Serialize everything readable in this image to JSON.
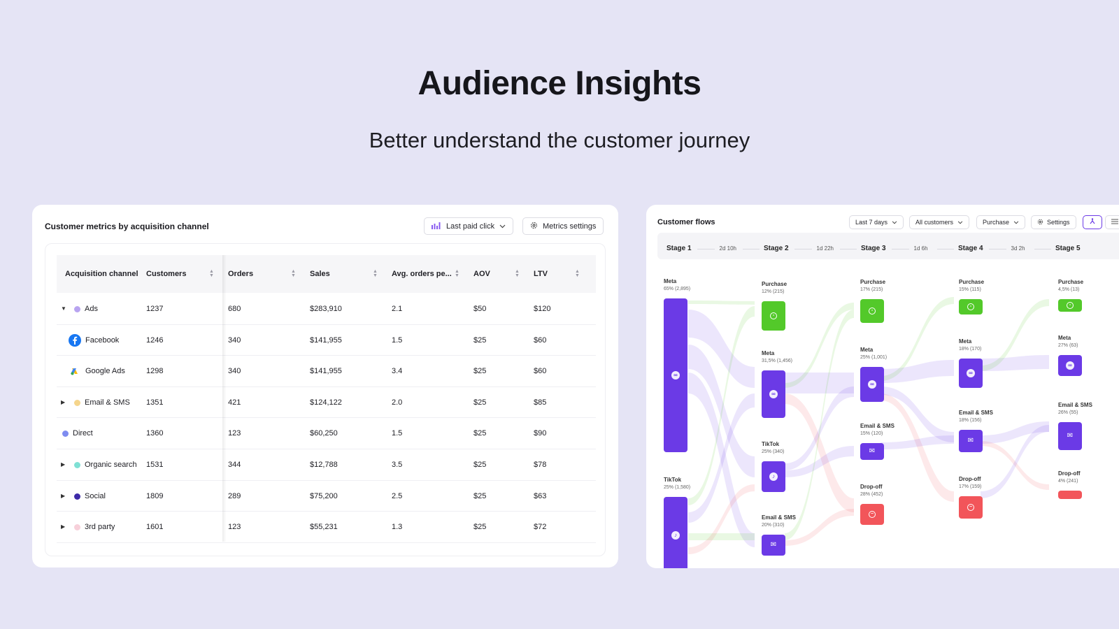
{
  "hero": {
    "title": "Audience Insights",
    "subtitle": "Better understand the customer journey"
  },
  "metrics_card": {
    "title": "Customer metrics by acquisition channel",
    "attribution_button": "Last paid click",
    "settings_button": "Metrics settings",
    "columns": [
      "Acquisition channel",
      "Customers",
      "Orders",
      "Sales",
      "Avg. orders pe...",
      "AOV",
      "LTV"
    ],
    "rows": [
      {
        "channel": "Ads",
        "customers": "1237",
        "orders": "680",
        "sales": "$283,910",
        "avg_orders": "2.1",
        "aov": "$50",
        "ltv": "$120",
        "color": "#b8a4f0",
        "caret": "down"
      },
      {
        "channel": "Facebook",
        "customers": "1246",
        "orders": "340",
        "sales": "$141,955",
        "avg_orders": "1.5",
        "aov": "$25",
        "ltv": "$60",
        "icon": "facebook-icon"
      },
      {
        "channel": "Google Ads",
        "customers": "1298",
        "orders": "340",
        "sales": "$141,955",
        "avg_orders": "3.4",
        "aov": "$25",
        "ltv": "$60",
        "icon": "google-ads-icon"
      },
      {
        "channel": "Email & SMS",
        "customers": "1351",
        "orders": "421",
        "sales": "$124,122",
        "avg_orders": "2.0",
        "aov": "$25",
        "ltv": "$85",
        "color": "#f5d58c",
        "caret": "right"
      },
      {
        "channel": "Direct",
        "customers": "1360",
        "orders": "123",
        "sales": "$60,250",
        "avg_orders": "1.5",
        "aov": "$25",
        "ltv": "$90",
        "color": "#7e8cf0"
      },
      {
        "channel": "Organic search",
        "customers": "1531",
        "orders": "344",
        "sales": "$12,788",
        "avg_orders": "3.5",
        "aov": "$25",
        "ltv": "$78",
        "color": "#7fe0d4",
        "caret": "right"
      },
      {
        "channel": "Social",
        "customers": "1809",
        "orders": "289",
        "sales": "$75,200",
        "avg_orders": "2.5",
        "aov": "$25",
        "ltv": "$63",
        "color": "#3d2aa8",
        "caret": "right"
      },
      {
        "channel": "3rd party",
        "customers": "1601",
        "orders": "123",
        "sales": "$55,231",
        "avg_orders": "1.3",
        "aov": "$25",
        "ltv": "$72",
        "color": "#f7d0da",
        "caret": "right"
      }
    ]
  },
  "flows_card": {
    "title": "Customer flows",
    "filters": {
      "range": "Last 7 days",
      "audience": "All customers",
      "event": "Purchase",
      "settings": "Settings"
    },
    "stages": [
      "Stage 1",
      "Stage 2",
      "Stage 3",
      "Stage 4",
      "Stage 5"
    ],
    "gaps": [
      "2d 10h",
      "1d 22h",
      "1d 6h",
      "3d 2h"
    ],
    "nodes": {
      "s1_meta": {
        "label": "Meta",
        "sub": "65% (2,895)"
      },
      "s1_tiktok": {
        "label": "TikTok",
        "sub": "25% (1,580)"
      },
      "s2_purchase": {
        "label": "Purchase",
        "sub": "12% (215)"
      },
      "s2_meta": {
        "label": "Meta",
        "sub": "31,5% (1,456)"
      },
      "s2_tiktok": {
        "label": "TikTok",
        "sub": "25% (340)"
      },
      "s2_email": {
        "label": "Email & SMS",
        "sub": "20% (310)"
      },
      "s3_purchase": {
        "label": "Purchase",
        "sub": "17% (215)"
      },
      "s3_meta": {
        "label": "Meta",
        "sub": "25% (1,001)"
      },
      "s3_email": {
        "label": "Email & SMS",
        "sub": "15% (120)"
      },
      "s3_dropoff": {
        "label": "Drop-off",
        "sub": "28% (452)"
      },
      "s4_purchase": {
        "label": "Purchase",
        "sub": "15% (115)"
      },
      "s4_meta": {
        "label": "Meta",
        "sub": "18% (170)"
      },
      "s4_email": {
        "label": "Email & SMS",
        "sub": "18% (156)"
      },
      "s4_dropoff": {
        "label": "Drop-off",
        "sub": "17% (159)"
      },
      "s5_purchase": {
        "label": "Purchase",
        "sub": "4,5% (13)"
      },
      "s5_meta": {
        "label": "Meta",
        "sub": "27% (63)"
      },
      "s5_email": {
        "label": "Email & SMS",
        "sub": "26% (55)"
      },
      "s5_dropoff": {
        "label": "Drop-off",
        "sub": "4% (241)"
      }
    },
    "colors": {
      "meta": "#6b3ae6",
      "purchase": "#53c92a",
      "dropoff": "#f2555a"
    }
  }
}
